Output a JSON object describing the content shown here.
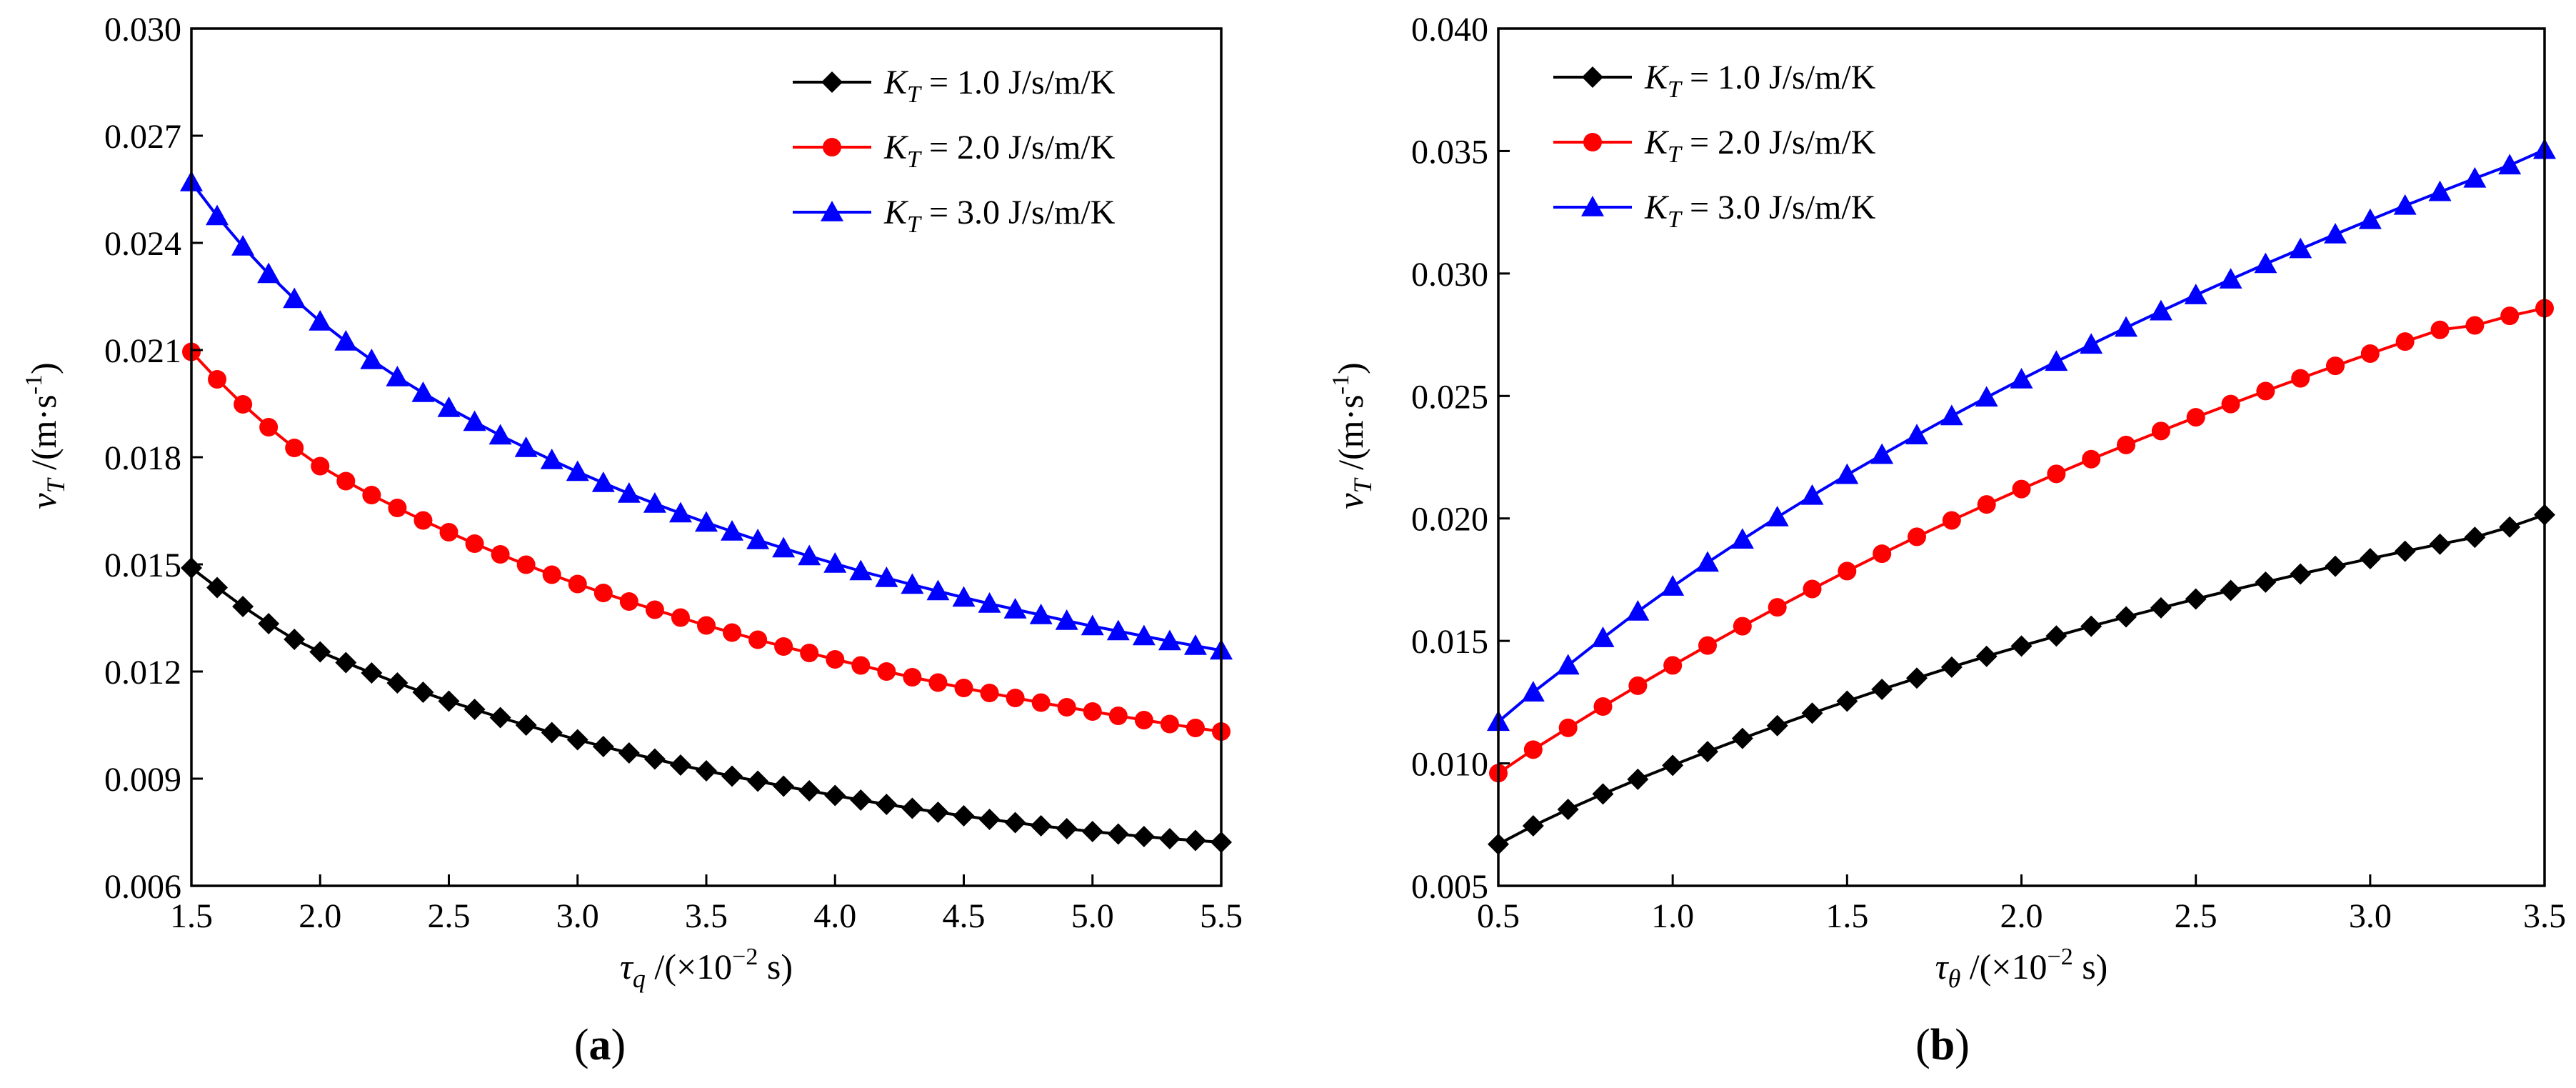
{
  "chart_data": [
    {
      "type": "line",
      "panel_label": {
        "open": "(",
        "letter": "a",
        "close": ")"
      },
      "xlabel": {
        "symbol": "τ",
        "sub": "q",
        "unit_pre": " /(×10",
        "unit_exp": "−2",
        "unit_post": " s)"
      },
      "ylabel": {
        "symbol": "v",
        "sub": "T",
        "unit_pre": " /(m·s",
        "unit_exp": "-1",
        "unit_post": ")"
      },
      "xlim": [
        1.5,
        5.5
      ],
      "ylim": [
        0.006,
        0.03
      ],
      "xticks": [
        1.5,
        2.0,
        2.5,
        3.0,
        3.5,
        4.0,
        4.5,
        5.0,
        5.5
      ],
      "xtick_labels": [
        "1.5",
        "2.0",
        "2.5",
        "3.0",
        "3.5",
        "4.0",
        "4.5",
        "5.0",
        "5.5"
      ],
      "yticks": [
        0.006,
        0.009,
        0.012,
        0.015,
        0.018,
        0.021,
        0.024,
        0.027,
        0.03
      ],
      "ytick_labels": [
        "0.006",
        "0.009",
        "0.012",
        "0.015",
        "0.018",
        "0.021",
        "0.024",
        "0.027",
        "0.030"
      ],
      "grid": false,
      "legend_position": "top-right",
      "x": [
        1.5,
        1.6,
        1.7,
        1.8,
        1.9,
        2.0,
        2.1,
        2.2,
        2.3,
        2.4,
        2.5,
        2.6,
        2.7,
        2.8,
        2.9,
        3.0,
        3.1,
        3.2,
        3.3,
        3.4,
        3.5,
        3.6,
        3.7,
        3.8,
        3.9,
        4.0,
        4.1,
        4.2,
        4.3,
        4.4,
        4.5,
        4.6,
        4.7,
        4.8,
        4.9,
        5.0,
        5.1,
        5.2,
        5.3,
        5.4,
        5.5
      ],
      "series": [
        {
          "name": {
            "sym": "K",
            "sub": "T",
            "rest": " = 1.0 J/s/m/K"
          },
          "color": "#000000",
          "marker": "diamond",
          "values": [
            0.0149,
            0.01435,
            0.01382,
            0.01334,
            0.0129,
            0.01255,
            0.01225,
            0.01196,
            0.01168,
            0.01142,
            0.01117,
            0.01094,
            0.01071,
            0.0105,
            0.01029,
            0.01009,
            0.0099,
            0.00972,
            0.00955,
            0.00938,
            0.00922,
            0.00907,
            0.00893,
            0.00879,
            0.00866,
            0.00853,
            0.0084,
            0.00828,
            0.00817,
            0.00806,
            0.00796,
            0.00786,
            0.00777,
            0.00768,
            0.0076,
            0.00752,
            0.00745,
            0.00738,
            0.00732,
            0.00727,
            0.00722
          ]
        },
        {
          "name": {
            "sym": "K",
            "sub": "T",
            "rest": " = 2.0 J/s/m/K"
          },
          "color": "#ff0000",
          "marker": "circle",
          "values": [
            0.02095,
            0.02018,
            0.01948,
            0.01884,
            0.01826,
            0.01775,
            0.01733,
            0.01694,
            0.01658,
            0.01623,
            0.0159,
            0.01558,
            0.01528,
            0.01499,
            0.01471,
            0.01445,
            0.0142,
            0.01396,
            0.01373,
            0.01351,
            0.01329,
            0.01309,
            0.01289,
            0.0127,
            0.01252,
            0.01234,
            0.01217,
            0.012,
            0.01184,
            0.01169,
            0.01154,
            0.0114,
            0.01126,
            0.01113,
            0.011,
            0.01088,
            0.01076,
            0.01064,
            0.01053,
            0.01042,
            0.01032
          ]
        },
        {
          "name": {
            "sym": "K",
            "sub": "T",
            "rest": " = 3.0 J/s/m/K"
          },
          "color": "#0000ff",
          "marker": "triangle",
          "values": [
            0.0257,
            0.02475,
            0.0239,
            0.02313,
            0.02243,
            0.0218,
            0.02124,
            0.02072,
            0.02024,
            0.0198,
            0.01938,
            0.01899,
            0.01861,
            0.01826,
            0.01792,
            0.01759,
            0.01728,
            0.01698,
            0.0167,
            0.01643,
            0.01617,
            0.01592,
            0.01568,
            0.01545,
            0.01523,
            0.01502,
            0.01481,
            0.01462,
            0.01443,
            0.01425,
            0.01407,
            0.0139,
            0.01374,
            0.01358,
            0.01342,
            0.01327,
            0.01313,
            0.01299,
            0.01285,
            0.01272,
            0.01259
          ]
        }
      ]
    },
    {
      "type": "line",
      "panel_label": {
        "open": "(",
        "letter": "b",
        "close": ")"
      },
      "xlabel": {
        "symbol": "τ",
        "sub": "θ",
        "unit_pre": " /(×10",
        "unit_exp": "−2",
        "unit_post": " s)"
      },
      "ylabel": {
        "symbol": "v",
        "sub": "T",
        "unit_pre": " /(m·s",
        "unit_exp": "-1",
        "unit_post": ")"
      },
      "xlim": [
        0.5,
        3.5
      ],
      "ylim": [
        0.005,
        0.04
      ],
      "xticks": [
        0.5,
        1.0,
        1.5,
        2.0,
        2.5,
        3.0,
        3.5
      ],
      "xtick_labels": [
        "0.5",
        "1.0",
        "1.5",
        "2.0",
        "2.5",
        "3.0",
        "3.5"
      ],
      "yticks": [
        0.005,
        0.01,
        0.015,
        0.02,
        0.025,
        0.03,
        0.035,
        0.04
      ],
      "ytick_labels": [
        "0.005",
        "0.010",
        "0.015",
        "0.020",
        "0.025",
        "0.030",
        "0.035",
        "0.040"
      ],
      "grid": false,
      "legend_position": "top-left",
      "x": [
        0.5,
        0.6,
        0.7,
        0.8,
        0.9,
        1.0,
        1.1,
        1.2,
        1.3,
        1.4,
        1.5,
        1.6,
        1.7,
        1.8,
        1.9,
        2.0,
        2.1,
        2.2,
        2.3,
        2.4,
        2.5,
        2.6,
        2.7,
        2.8,
        2.9,
        3.0,
        3.1,
        3.2,
        3.3,
        3.4,
        3.5
      ],
      "series": [
        {
          "name": {
            "sym": "K",
            "sub": "T",
            "rest": " = 1.0 J/s/m/K"
          },
          "color": "#000000",
          "marker": "diamond",
          "values": [
            0.0067,
            0.00745,
            0.00812,
            0.00875,
            0.00935,
            0.00992,
            0.01048,
            0.01102,
            0.01154,
            0.01205,
            0.01254,
            0.01302,
            0.01348,
            0.01393,
            0.01437,
            0.01479,
            0.0152,
            0.0156,
            0.01598,
            0.01635,
            0.01671,
            0.01706,
            0.0174,
            0.01773,
            0.01805,
            0.01836,
            0.01866,
            0.01895,
            0.01923,
            0.01965,
            0.02015
          ]
        },
        {
          "name": {
            "sym": "K",
            "sub": "T",
            "rest": " = 2.0 J/s/m/K"
          },
          "color": "#ff0000",
          "marker": "circle",
          "values": [
            0.0096,
            0.01056,
            0.01145,
            0.01232,
            0.01317,
            0.014,
            0.01481,
            0.0156,
            0.01637,
            0.01712,
            0.01785,
            0.01856,
            0.01925,
            0.01992,
            0.02057,
            0.0212,
            0.02182,
            0.02242,
            0.023,
            0.02357,
            0.02413,
            0.02467,
            0.0252,
            0.02572,
            0.02623,
            0.02673,
            0.02722,
            0.0277,
            0.02788,
            0.02827,
            0.02858
          ]
        },
        {
          "name": {
            "sym": "K",
            "sub": "T",
            "rest": " = 3.0 J/s/m/K"
          },
          "color": "#0000ff",
          "marker": "triangle",
          "values": [
            0.0117,
            0.0129,
            0.014,
            0.01512,
            0.0162,
            0.01722,
            0.0182,
            0.01914,
            0.02005,
            0.02093,
            0.02178,
            0.0226,
            0.0234,
            0.02418,
            0.02494,
            0.02568,
            0.0264,
            0.0271,
            0.02779,
            0.02846,
            0.02912,
            0.02976,
            0.03039,
            0.031,
            0.0316,
            0.03219,
            0.03277,
            0.03333,
            0.03388,
            0.03442,
            0.03505
          ]
        }
      ]
    }
  ]
}
